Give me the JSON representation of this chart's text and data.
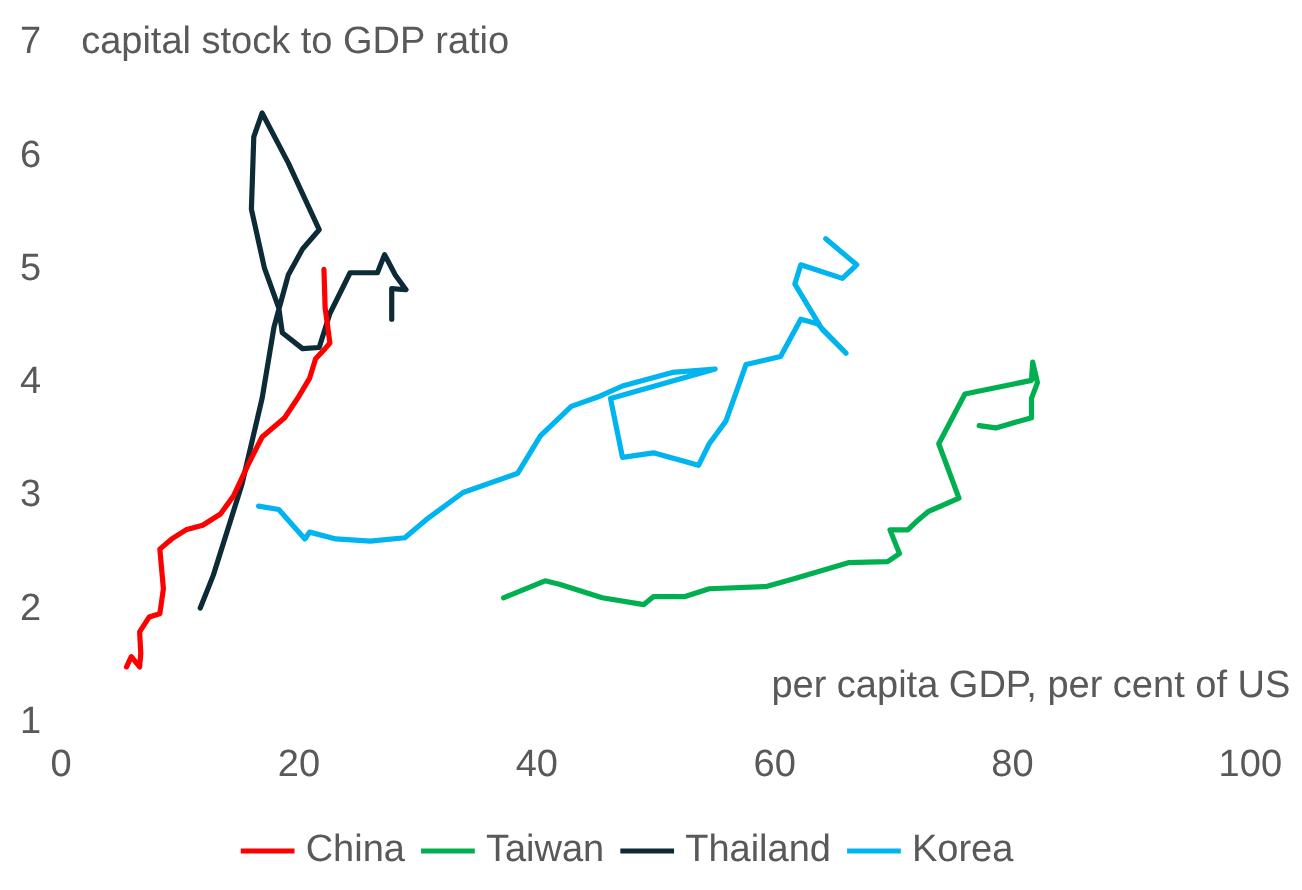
{
  "chart_data": {
    "type": "line",
    "xlabel": "per capita GDP, per cent of US",
    "ylabel": "capital stock to GDP ratio",
    "xlim": [
      0,
      100
    ],
    "xticks": [
      0,
      20,
      40,
      60,
      80,
      100
    ],
    "ylim": [
      1,
      7
    ],
    "yticks": [
      1,
      2,
      3,
      4,
      5,
      6,
      7
    ],
    "grid": false,
    "legend": "bottom",
    "marker": "none",
    "line_style": "solid",
    "series": [
      {
        "name": "China",
        "color": "#ff0000",
        "x": [
          5.5,
          5.9,
          6.6,
          6.7,
          6.6,
          7.4,
          8.3,
          8.6,
          8.3,
          9.3,
          10.5,
          11.9,
          13.4,
          14.5,
          15.7,
          16.9,
          18.8,
          20.0,
          20.9,
          21.4,
          22.2,
          22.6,
          22.2,
          22.1
        ],
        "values": [
          1.49,
          1.58,
          1.49,
          1.61,
          1.8,
          1.93,
          1.96,
          2.18,
          2.53,
          2.62,
          2.7,
          2.74,
          2.84,
          3.0,
          3.27,
          3.52,
          3.69,
          3.88,
          4.04,
          4.21,
          4.3,
          4.35,
          4.66,
          5.0
        ]
      },
      {
        "name": "Taiwan",
        "color": "#00b050",
        "x": [
          37.2,
          40.7,
          41.9,
          45.5,
          49.0,
          49.8,
          52.4,
          54.5,
          59.3,
          61.7,
          66.2,
          69.5,
          70.5,
          69.7,
          71.2,
          72.1,
          72.9,
          75.5,
          73.8,
          76.0,
          81.6,
          81.7,
          82.1,
          81.6,
          81.6,
          78.6,
          77.2
        ],
        "values": [
          2.1,
          2.25,
          2.22,
          2.1,
          2.04,
          2.11,
          2.11,
          2.18,
          2.2,
          2.27,
          2.41,
          2.42,
          2.49,
          2.7,
          2.7,
          2.79,
          2.86,
          2.98,
          3.46,
          3.9,
          4.02,
          4.18,
          4.0,
          3.86,
          3.69,
          3.6,
          3.62
        ]
      },
      {
        "name": "Thailand",
        "color": "#0d2b36",
        "x": [
          11.7,
          12.8,
          15.2,
          16.9,
          17.9,
          19.1,
          20.3,
          21.7,
          19.1,
          16.9,
          16.2,
          16.0,
          17.1,
          18.3,
          18.6,
          20.3,
          21.7,
          22.6,
          24.3,
          26.6,
          27.2,
          28.1,
          29.0,
          27.8,
          27.8
        ],
        "values": [
          2.01,
          2.3,
          3.1,
          3.86,
          4.49,
          4.95,
          5.18,
          5.35,
          5.94,
          6.38,
          6.17,
          5.53,
          5.01,
          4.66,
          4.44,
          4.3,
          4.31,
          4.61,
          4.97,
          4.97,
          5.13,
          4.95,
          4.82,
          4.83,
          4.56
        ]
      },
      {
        "name": "Korea",
        "color": "#00b4f0",
        "x": [
          16.6,
          18.3,
          20.5,
          20.9,
          23.1,
          26.0,
          28.9,
          30.7,
          33.8,
          38.4,
          40.3,
          42.9,
          45.3,
          47.2,
          51.4,
          55.0,
          46.2,
          47.2,
          49.8,
          53.6,
          54.5,
          55.9,
          57.6,
          60.5,
          62.2,
          63.6,
          66.0,
          64.0,
          61.7,
          62.2,
          65.7,
          66.9,
          64.3
        ],
        "values": [
          2.91,
          2.88,
          2.62,
          2.68,
          2.62,
          2.6,
          2.63,
          2.79,
          3.03,
          3.2,
          3.53,
          3.79,
          3.88,
          3.97,
          4.09,
          4.12,
          3.86,
          3.34,
          3.38,
          3.27,
          3.46,
          3.66,
          4.16,
          4.23,
          4.56,
          4.52,
          4.26,
          4.47,
          4.87,
          5.04,
          4.92,
          5.04,
          5.27
        ]
      }
    ]
  }
}
